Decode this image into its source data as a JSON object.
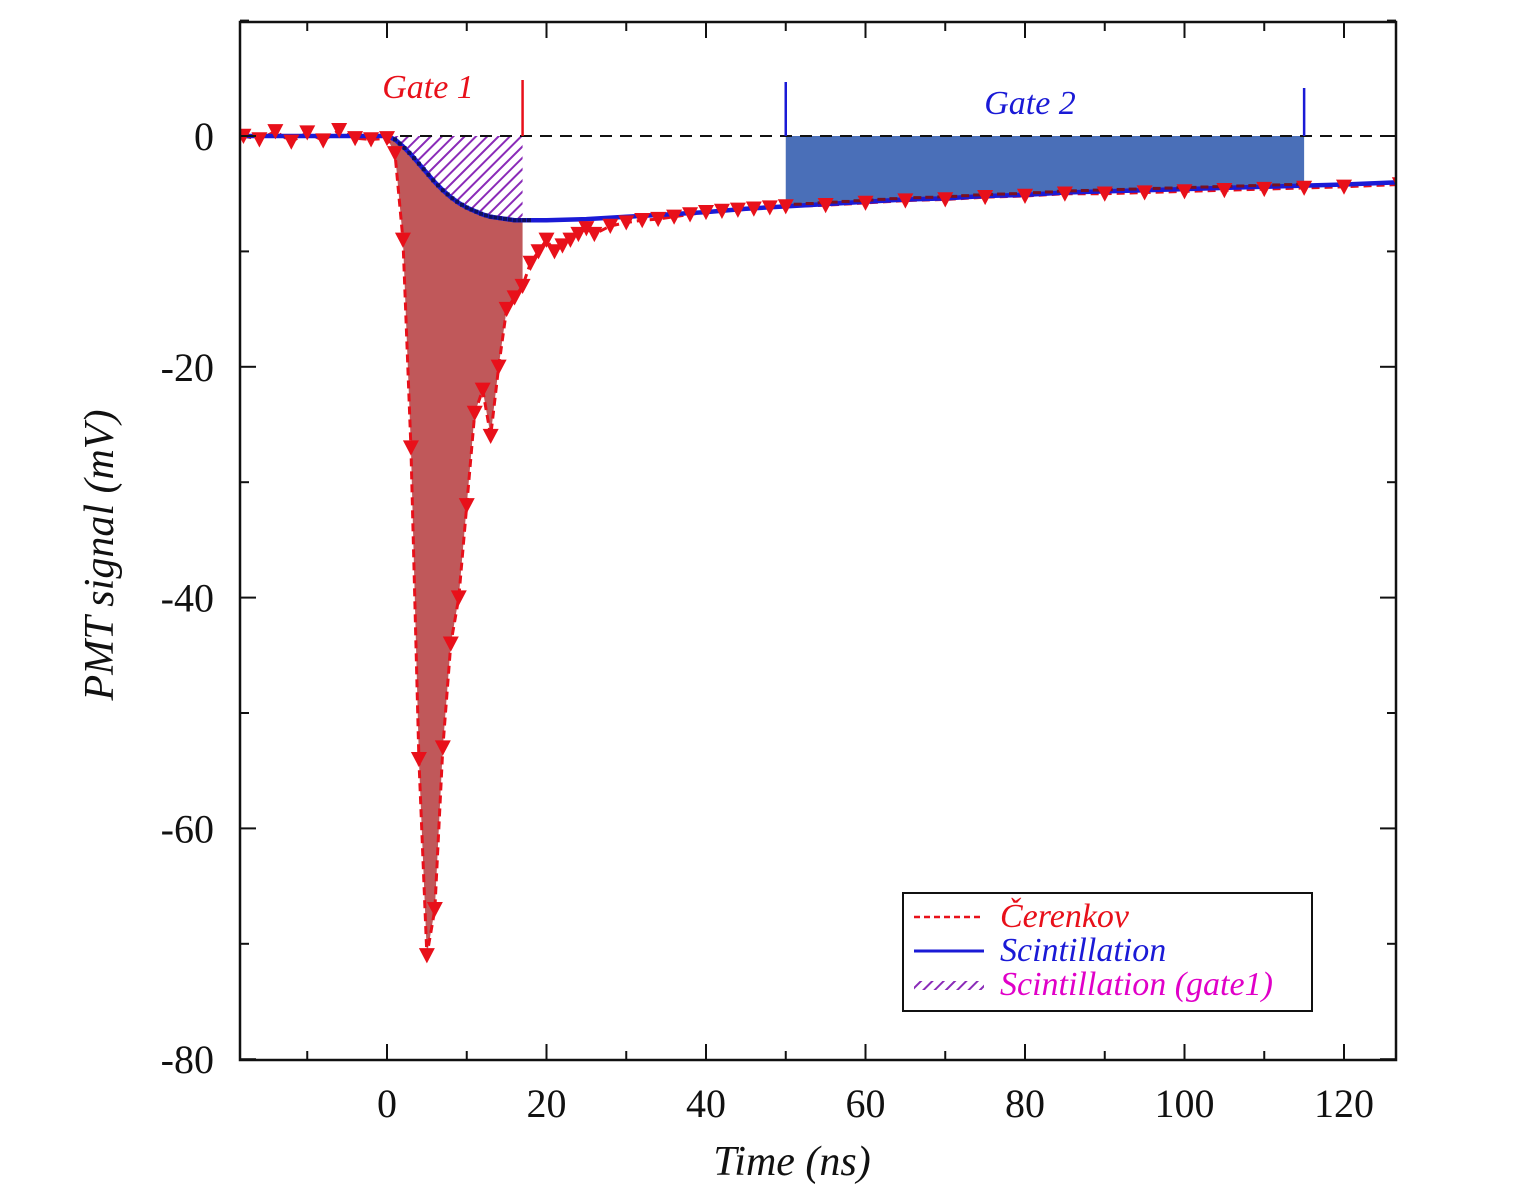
{
  "chart_data": {
    "type": "line",
    "title": "",
    "xlabel": "Time (ns)",
    "ylabel": "PMT signal (mV)",
    "xlim": [
      -18,
      127
    ],
    "ylim": [
      -80,
      10
    ],
    "x_ticks": [
      0,
      20,
      40,
      60,
      80,
      100,
      120
    ],
    "x_tick_labels": [
      "0",
      "20",
      "40",
      "60",
      "80",
      "100",
      "120"
    ],
    "y_ticks": [
      0,
      -20,
      -40,
      -60,
      -80
    ],
    "y_tick_labels": [
      "0",
      "-20",
      "-40",
      "-60",
      "-80"
    ],
    "grid": false,
    "baseline": 0,
    "gates": [
      {
        "label": "Gate 1",
        "start": 0,
        "end": 17,
        "color": "#e8101a"
      },
      {
        "label": "Gate 2",
        "start": 50,
        "end": 115,
        "color": "#1a1ad6"
      }
    ],
    "legend_position": "bottom-right",
    "legend": [
      {
        "label": "Čerenkov",
        "color": "#e8101a",
        "style": "dashed"
      },
      {
        "label": "Scintillation",
        "color": "#1a1ad6",
        "style": "solid"
      },
      {
        "label": "Scintillation (gate1)",
        "color": "#e000c8",
        "style": "hatched"
      }
    ],
    "series": [
      {
        "name": "Čerenkov",
        "color": "#e8101a",
        "marker": "triangle-down",
        "x": [
          -18,
          -16,
          -14,
          -12,
          -10,
          -8,
          -6,
          -4,
          -2,
          0,
          1,
          2,
          3,
          4,
          5,
          6,
          7,
          8,
          9,
          10,
          11,
          12,
          13,
          14,
          15,
          16,
          17,
          18,
          19,
          20,
          21,
          22,
          23,
          24,
          25,
          26,
          28,
          30,
          32,
          34,
          36,
          38,
          40,
          42,
          44,
          46,
          48,
          50,
          55,
          60,
          65,
          70,
          75,
          80,
          85,
          90,
          95,
          100,
          105,
          110,
          115,
          120,
          127
        ],
        "y": [
          0,
          -0.3,
          0.4,
          -0.5,
          0.3,
          -0.4,
          0.5,
          -0.2,
          -0.3,
          -0.2,
          -1.5,
          -9,
          -27,
          -54,
          -71,
          -67,
          -53,
          -44,
          -40,
          -32,
          -24,
          -22,
          -26,
          -20,
          -15,
          -14,
          -13,
          -11,
          -10,
          -9,
          -10,
          -9.5,
          -9,
          -8.5,
          -8,
          -8.5,
          -7.8,
          -7.5,
          -7.3,
          -7.2,
          -7.0,
          -6.8,
          -6.6,
          -6.5,
          -6.4,
          -6.3,
          -6.2,
          -6.1,
          -6.0,
          -5.8,
          -5.6,
          -5.5,
          -5.3,
          -5.2,
          -5.0,
          -5.0,
          -4.9,
          -4.8,
          -4.7,
          -4.6,
          -4.5,
          -4.4,
          -4.2
        ]
      },
      {
        "name": "Scintillation",
        "color": "#1a1ad6",
        "x": [
          -18,
          -10,
          -5,
          0,
          1,
          2,
          3,
          4,
          5,
          6,
          7,
          8,
          9,
          10,
          11,
          12,
          13,
          14,
          15,
          16,
          17,
          20,
          25,
          30,
          35,
          40,
          45,
          50,
          55,
          60,
          65,
          70,
          75,
          80,
          85,
          90,
          95,
          100,
          105,
          110,
          115,
          120,
          127
        ],
        "y": [
          0,
          0,
          0,
          0,
          -0.3,
          -0.9,
          -1.6,
          -2.4,
          -3.2,
          -4.0,
          -4.7,
          -5.3,
          -5.8,
          -6.2,
          -6.5,
          -6.8,
          -7.0,
          -7.1,
          -7.2,
          -7.3,
          -7.3,
          -7.3,
          -7.2,
          -7.0,
          -6.8,
          -6.6,
          -6.3,
          -6.1,
          -5.9,
          -5.7,
          -5.5,
          -5.4,
          -5.2,
          -5.1,
          -4.9,
          -4.8,
          -4.7,
          -4.6,
          -4.5,
          -4.4,
          -4.3,
          -4.2,
          -4.0
        ]
      }
    ]
  }
}
